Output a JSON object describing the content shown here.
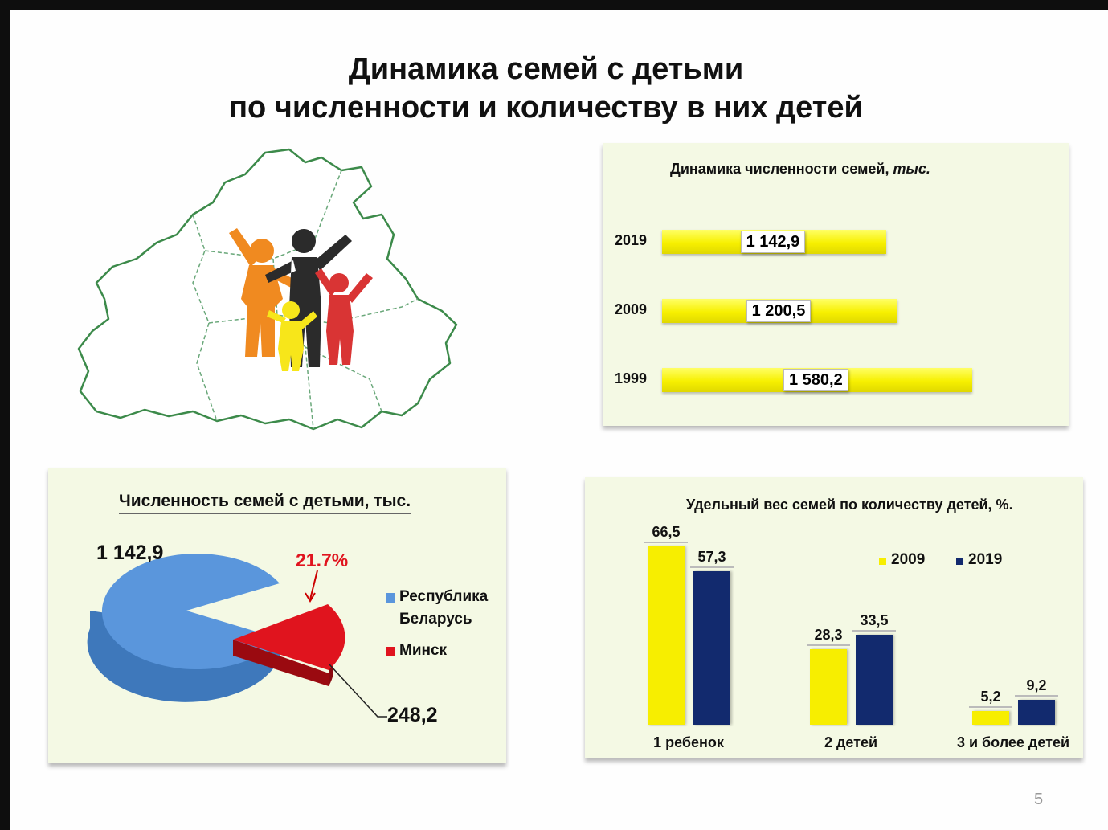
{
  "title": {
    "line1": "Динамика семей с детьми",
    "line2": "по численности и количеству  в них детей"
  },
  "page_number": "5",
  "colors": {
    "yellow": "#f7ee00",
    "navy": "#122a6e",
    "pie_blue": "#5a96dc",
    "pie_red": "#e0141e",
    "panel_bg": "#f4f9e4"
  },
  "illustration": {
    "icon": "belarus-map-family-icon"
  },
  "chart_data": [
    {
      "type": "bar",
      "orientation": "horizontal",
      "title_main": "Динамика численности семей, ",
      "title_unit": "тыс.",
      "categories": [
        "2019",
        "2009",
        "1999"
      ],
      "values": [
        1142.9,
        1200.5,
        1580.2
      ],
      "value_labels": [
        "1 142,9",
        "1 200,5",
        "1 580,2"
      ]
    },
    {
      "type": "pie",
      "title": "Численность семей с детьми, тыс.",
      "slices": [
        {
          "name_line1": "Республика",
          "name_line2": "Беларусь",
          "value": 1142.9,
          "label": "1 142,9"
        },
        {
          "name_line1": "Минск",
          "name_line2": "",
          "value": 248.2,
          "label": "248,2",
          "percent_label": "21.7%"
        }
      ]
    },
    {
      "type": "bar",
      "title": "Удельный вес семей  по количеству детей, %.",
      "categories": [
        "1 ребенок",
        "2 детей",
        "3 и более детей"
      ],
      "ylim": [
        0,
        70
      ],
      "series": [
        {
          "name": "2009",
          "values": [
            66.5,
            28.3,
            5.2
          ],
          "labels": [
            "66,5",
            "28,3",
            "5,2"
          ]
        },
        {
          "name": "2019",
          "values": [
            57.3,
            33.5,
            9.2
          ],
          "labels": [
            "57,3",
            "33,5",
            "9,2"
          ]
        }
      ]
    }
  ]
}
